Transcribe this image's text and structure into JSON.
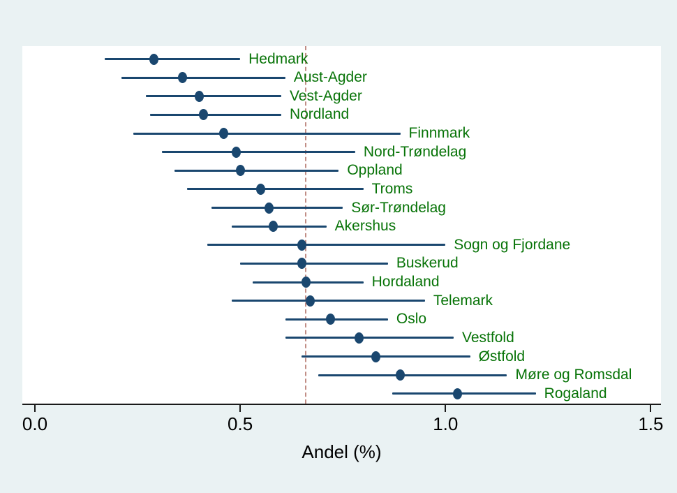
{
  "figure": {
    "background_color": "#eaf2f3",
    "plot_background_color": "#ffffff",
    "marker_color": "#1a476f",
    "ci_line_color": "#1a476f",
    "county_label_color": "#077307",
    "axis_color": "#1a1a1a",
    "reference_line_color": "#c18d85"
  },
  "chart_data": {
    "type": "scatter",
    "subtype": "forest-plot-with-confidence-intervals",
    "title": "",
    "xlabel": "Andel (%)",
    "ylabel": "",
    "xlim": [
      0,
      1.5
    ],
    "x_tick_values": [
      0,
      0.5,
      1.0,
      1.5
    ],
    "x_tick_labels": [
      "0.0",
      "0.5",
      "1.0",
      "1.5"
    ],
    "grid": false,
    "legend": false,
    "reference_line_x": 0.66,
    "points": [
      {
        "label": "Hedmark",
        "value": 0.29,
        "ci_low": 0.17,
        "ci_high": 0.5
      },
      {
        "label": "Aust-Agder",
        "value": 0.36,
        "ci_low": 0.21,
        "ci_high": 0.61
      },
      {
        "label": "Vest-Agder",
        "value": 0.4,
        "ci_low": 0.27,
        "ci_high": 0.6
      },
      {
        "label": "Nordland",
        "value": 0.41,
        "ci_low": 0.28,
        "ci_high": 0.6
      },
      {
        "label": "Finnmark",
        "value": 0.46,
        "ci_low": 0.24,
        "ci_high": 0.89
      },
      {
        "label": "Nord-Trøndelag",
        "value": 0.49,
        "ci_low": 0.31,
        "ci_high": 0.78
      },
      {
        "label": "Oppland",
        "value": 0.5,
        "ci_low": 0.34,
        "ci_high": 0.74
      },
      {
        "label": "Troms",
        "value": 0.55,
        "ci_low": 0.37,
        "ci_high": 0.8
      },
      {
        "label": "Sør-Trøndelag",
        "value": 0.57,
        "ci_low": 0.43,
        "ci_high": 0.75
      },
      {
        "label": "Akershus",
        "value": 0.58,
        "ci_low": 0.48,
        "ci_high": 0.71
      },
      {
        "label": "Sogn og Fjordane",
        "value": 0.65,
        "ci_low": 0.42,
        "ci_high": 1.0
      },
      {
        "label": "Buskerud",
        "value": 0.65,
        "ci_low": 0.5,
        "ci_high": 0.86
      },
      {
        "label": "Hordaland",
        "value": 0.66,
        "ci_low": 0.53,
        "ci_high": 0.8
      },
      {
        "label": "Telemark",
        "value": 0.67,
        "ci_low": 0.48,
        "ci_high": 0.95
      },
      {
        "label": "Oslo",
        "value": 0.72,
        "ci_low": 0.61,
        "ci_high": 0.86
      },
      {
        "label": "Vestfold",
        "value": 0.79,
        "ci_low": 0.61,
        "ci_high": 1.02
      },
      {
        "label": "Østfold",
        "value": 0.83,
        "ci_low": 0.65,
        "ci_high": 1.06
      },
      {
        "label": "Møre og Romsdal",
        "value": 0.89,
        "ci_low": 0.69,
        "ci_high": 1.15
      },
      {
        "label": "Rogaland",
        "value": 1.03,
        "ci_low": 0.87,
        "ci_high": 1.22
      }
    ]
  }
}
